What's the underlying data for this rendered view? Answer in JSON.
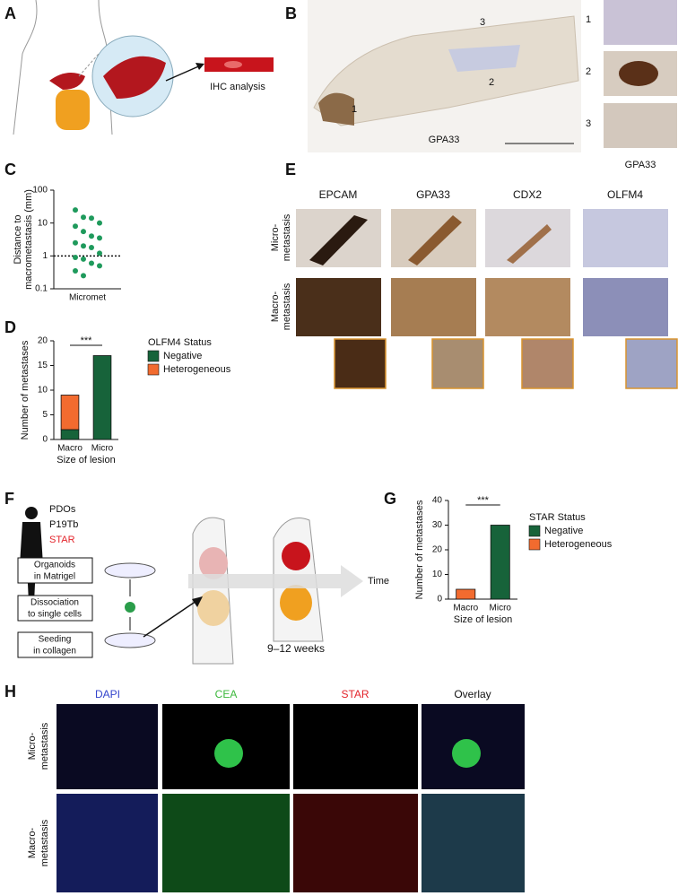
{
  "figure": {
    "letters": [
      "A",
      "B",
      "C",
      "D",
      "E",
      "F",
      "G",
      "H"
    ],
    "panel_a": {
      "label": "IHC analysis"
    },
    "panel_b": {
      "stain": "GPA33",
      "regions": [
        "1",
        "2",
        "3"
      ],
      "inset_stain": "GPA33"
    },
    "panel_e": {
      "columns": [
        "EPCAM",
        "GPA33",
        "CDX2",
        "OLFM4"
      ],
      "rows": [
        [
          "Micro-",
          "metastasis"
        ],
        [
          "Macro-",
          "metastasis"
        ]
      ]
    },
    "panel_f": {
      "models": [
        "PDOs",
        "P19Tb",
        "STAR"
      ],
      "steps": [
        [
          "Organoids",
          "in Matrigel"
        ],
        [
          "Dissociation",
          "to single cells"
        ],
        [
          "Seeding",
          "in collagen"
        ]
      ],
      "axis_label": "Time",
      "duration": "9–12 weeks"
    },
    "panel_h": {
      "columns": [
        "DAPI",
        "CEA",
        "STAR",
        "Overlay"
      ],
      "rows": [
        [
          "Micro-",
          "metastasis"
        ],
        [
          "Macro-",
          "metastasis"
        ]
      ]
    }
  },
  "chart_data": [
    {
      "type": "scatter",
      "ylabel": [
        "Distance to",
        "macrometastasis (mm)"
      ],
      "categories": [
        "Micromet"
      ],
      "values": [
        25,
        15,
        14,
        10,
        8,
        5.5,
        4,
        3.5,
        2.5,
        2,
        1.8,
        1.2,
        0.9,
        0.8,
        0.6,
        0.5,
        0.35,
        0.25
      ],
      "color": "#1f9a5c",
      "log_y": true,
      "ylim": [
        0.1,
        100
      ],
      "yticks": [
        0.1,
        1,
        10,
        100
      ],
      "reference_line": 1
    },
    {
      "type": "stacked_bar",
      "ylabel": "Number of metastases",
      "xlabel": "Size of lesion",
      "categories": [
        "Macro",
        "Micro"
      ],
      "series": [
        {
          "name": "Negative",
          "color": "#17633a",
          "values": [
            2,
            17
          ]
        },
        {
          "name": "Heterogeneous",
          "color": "#f26b2f",
          "values": [
            7,
            0
          ]
        }
      ],
      "ylim": [
        0,
        20
      ],
      "yticks": [
        0,
        5,
        10,
        15,
        20
      ],
      "legend_title": "OLFM4 Status",
      "annotation": "***"
    },
    {
      "type": "stacked_bar",
      "ylabel": "Number of metastases",
      "xlabel": "Size of lesion",
      "categories": [
        "Macro",
        "Micro"
      ],
      "series": [
        {
          "name": "Negative",
          "color": "#17633a",
          "values": [
            0,
            30
          ]
        },
        {
          "name": "Heterogeneous",
          "color": "#f26b2f",
          "values": [
            4,
            0
          ]
        }
      ],
      "ylim": [
        0,
        40
      ],
      "yticks": [
        0,
        10,
        20,
        30,
        40
      ],
      "legend_title": "STAR Status",
      "annotation": "***"
    }
  ]
}
